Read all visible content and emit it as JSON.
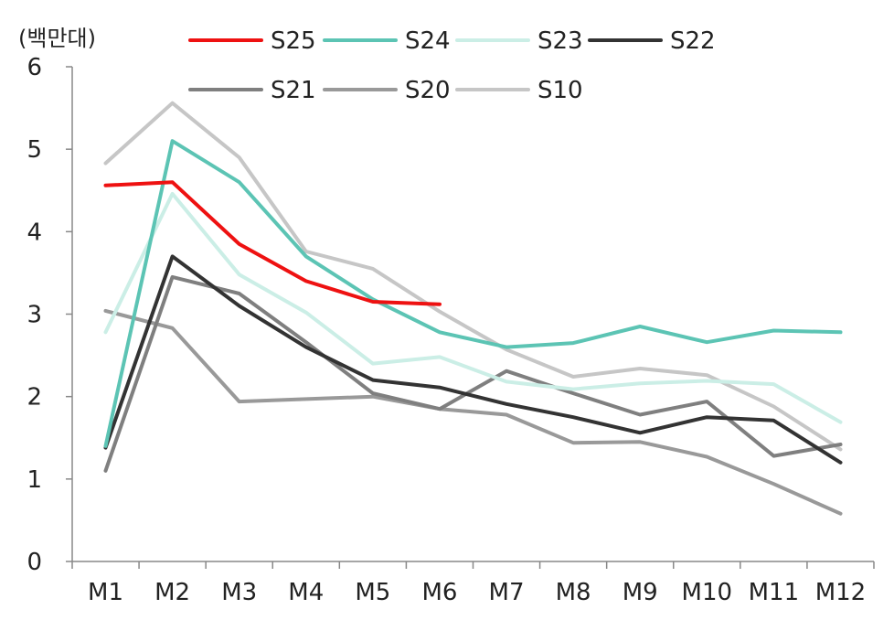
{
  "chart_data": {
    "type": "line",
    "ylabel": "(백만대)",
    "ylim": [
      0,
      6
    ],
    "yticks": [
      "0",
      "1",
      "2",
      "3",
      "4",
      "5",
      "6"
    ],
    "categories": [
      "M1",
      "M2",
      "M3",
      "M4",
      "M5",
      "M6",
      "M7",
      "M8",
      "M9",
      "M10",
      "M11",
      "M12"
    ],
    "grid": false,
    "legend_position": "top",
    "series": [
      {
        "name": "S25",
        "color": "#ee1111",
        "values": [
          4.56,
          4.6,
          3.85,
          3.4,
          3.15,
          3.12,
          null,
          null,
          null,
          null,
          null,
          null
        ]
      },
      {
        "name": "S24",
        "color": "#5cc4b4",
        "values": [
          1.4,
          5.1,
          4.6,
          3.7,
          3.18,
          2.78,
          2.6,
          2.65,
          2.85,
          2.66,
          2.8,
          2.78
        ]
      },
      {
        "name": "S23",
        "color": "#cbeee6",
        "values": [
          2.78,
          4.46,
          3.48,
          3.02,
          2.4,
          2.48,
          2.18,
          2.09,
          2.16,
          2.19,
          2.15,
          1.69
        ]
      },
      {
        "name": "S22",
        "color": "#333333",
        "values": [
          1.38,
          3.7,
          3.1,
          2.6,
          2.2,
          2.11,
          1.91,
          1.75,
          1.56,
          1.75,
          1.71,
          1.2
        ]
      },
      {
        "name": "S21",
        "color": "#7f7f7f",
        "values": [
          1.1,
          3.45,
          3.25,
          2.66,
          2.04,
          1.85,
          2.31,
          2.04,
          1.78,
          1.94,
          1.28,
          1.42
        ]
      },
      {
        "name": "S20",
        "color": "#999999",
        "values": [
          3.04,
          2.83,
          1.94,
          1.97,
          2.0,
          1.85,
          1.78,
          1.44,
          1.45,
          1.27,
          0.94,
          0.58
        ]
      },
      {
        "name": "S10",
        "color": "#c6c6c6",
        "values": [
          4.83,
          5.56,
          4.9,
          3.76,
          3.55,
          3.03,
          2.57,
          2.24,
          2.34,
          2.26,
          1.88,
          1.36
        ]
      }
    ]
  }
}
